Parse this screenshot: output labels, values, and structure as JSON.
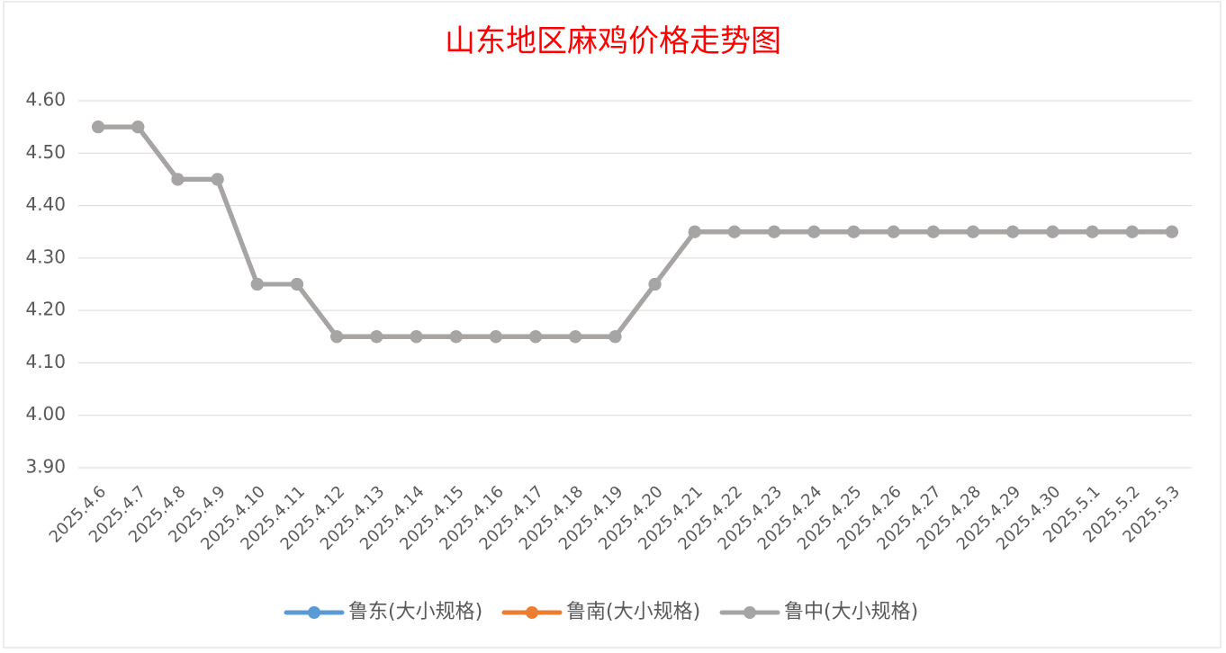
{
  "chart_data": {
    "type": "line",
    "title": "山东地区麻鸡价格走势图",
    "categories": [
      "2025.4.6",
      "2025.4.7",
      "2025.4.8",
      "2025.4.9",
      "2025.4.10",
      "2025.4.11",
      "2025.4.12",
      "2025.4.13",
      "2025.4.14",
      "2025.4.15",
      "2025.4.16",
      "2025.4.17",
      "2025.4.18",
      "2025.4.19",
      "2025.4.20",
      "2025.4.21",
      "2025.4.22",
      "2025.4.23",
      "2025.4.24",
      "2025.4.25",
      "2025.4.26",
      "2025.4.27",
      "2025.4.28",
      "2025.4.29",
      "2025.4.30",
      "2025.5.1",
      "2025.5.2",
      "2025.5.3"
    ],
    "series": [
      {
        "name": "鲁东(大小规格)",
        "color": "#5b9bd5",
        "values": [
          4.55,
          4.55,
          4.45,
          4.45,
          4.25,
          4.25,
          4.15,
          4.15,
          4.15,
          4.15,
          4.15,
          4.15,
          4.15,
          4.15,
          4.25,
          4.35,
          4.35,
          4.35,
          4.35,
          4.35,
          4.35,
          4.35,
          4.35,
          4.35,
          4.35,
          4.35,
          4.35,
          4.35
        ]
      },
      {
        "name": "鲁南(大小规格)",
        "color": "#ed7d31",
        "values": [
          4.55,
          4.55,
          4.45,
          4.45,
          4.25,
          4.25,
          4.15,
          4.15,
          4.15,
          4.15,
          4.15,
          4.15,
          4.15,
          4.15,
          4.25,
          4.35,
          4.35,
          4.35,
          4.35,
          4.35,
          4.35,
          4.35,
          4.35,
          4.35,
          4.35,
          4.35,
          4.35,
          4.35
        ]
      },
      {
        "name": "鲁中(大小规格)",
        "color": "#a5a5a5",
        "values": [
          4.55,
          4.55,
          4.45,
          4.45,
          4.25,
          4.25,
          4.15,
          4.15,
          4.15,
          4.15,
          4.15,
          4.15,
          4.15,
          4.15,
          4.25,
          4.35,
          4.35,
          4.35,
          4.35,
          4.35,
          4.35,
          4.35,
          4.35,
          4.35,
          4.35,
          4.35,
          4.35,
          4.35
        ]
      }
    ],
    "ylim": [
      3.9,
      4.6
    ],
    "yticks": [
      {
        "value": 3.9,
        "label": "3.90"
      },
      {
        "value": 4.0,
        "label": "4.00"
      },
      {
        "value": 4.1,
        "label": "4.10"
      },
      {
        "value": 4.2,
        "label": "4.20"
      },
      {
        "value": 4.3,
        "label": "4.30"
      },
      {
        "value": 4.4,
        "label": "4.40"
      },
      {
        "value": 4.5,
        "label": "4.50"
      },
      {
        "value": 4.6,
        "label": "4.60"
      }
    ],
    "grid": true,
    "legend": "bottom"
  }
}
